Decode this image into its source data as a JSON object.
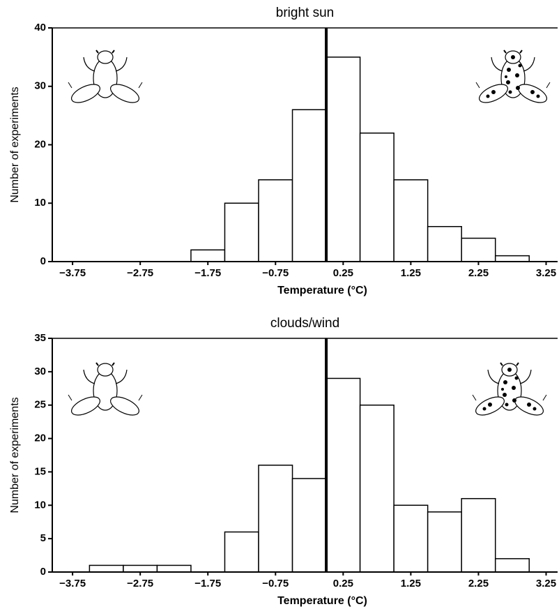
{
  "chart_data": [
    {
      "type": "histogram",
      "title": "bright sun",
      "xlabel": "Temperature (°C)",
      "ylabel": "Number of experiments",
      "bins": [
        -2.0,
        -1.5,
        -1.0,
        -0.5,
        0.0,
        0.5,
        1.0,
        1.5,
        2.0,
        2.5,
        3.0
      ],
      "values": [
        2,
        10,
        14,
        26,
        35,
        22,
        14,
        6,
        4,
        1
      ],
      "color": "#ffffff",
      "edgecolor": "#000000",
      "vline": 0,
      "xlim": [
        -4.05,
        3.42
      ],
      "ylim": [
        0,
        40
      ],
      "xticks": [
        {
          "value": -3.75,
          "label": "−3.75"
        },
        {
          "value": -2.75,
          "label": "−2.75"
        },
        {
          "value": -1.75,
          "label": "−1.75"
        },
        {
          "value": -0.75,
          "label": "−0.75"
        },
        0.25,
        1.25,
        2.25,
        3.25
      ],
      "yticks": [
        0,
        10,
        20,
        30,
        40
      ]
    },
    {
      "type": "histogram",
      "title": "clouds/wind",
      "xlabel": "Temperature (°C)",
      "ylabel": "Number of experiments",
      "bins": [
        -3.5,
        -3.0,
        -2.5,
        -2.0,
        -1.5,
        -1.0,
        -0.5,
        0.0,
        0.5,
        1.0,
        1.5,
        2.0,
        2.5,
        3.0
      ],
      "values": [
        1,
        1,
        1,
        0,
        6,
        16,
        14,
        29,
        25,
        10,
        9,
        11,
        2
      ],
      "color": "#ffffff",
      "edgecolor": "#000000",
      "vline": 0,
      "xlim": [
        -4.05,
        3.42
      ],
      "ylim": [
        0,
        35
      ],
      "xticks": [
        {
          "value": -3.75,
          "label": "−3.75"
        },
        {
          "value": -2.75,
          "label": "−2.75"
        },
        {
          "value": -1.75,
          "label": "−1.75"
        },
        {
          "value": -0.75,
          "label": "−0.75"
        },
        0.25,
        1.25,
        2.25,
        3.25
      ],
      "yticks": [
        0,
        5,
        10,
        15,
        20,
        25,
        30,
        35
      ]
    }
  ]
}
